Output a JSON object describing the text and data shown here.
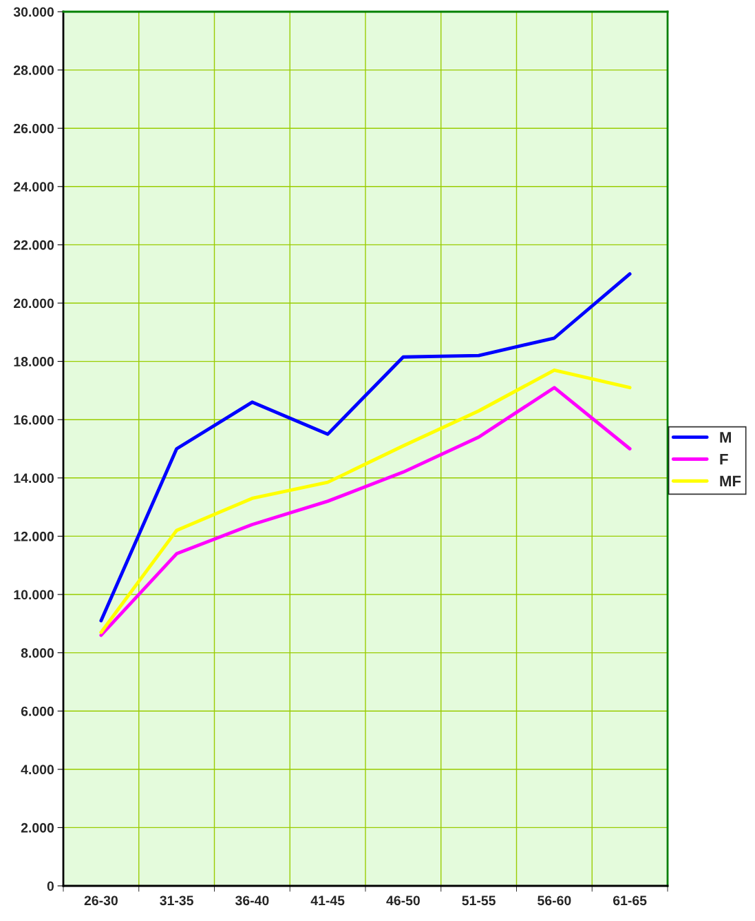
{
  "chart_data": {
    "type": "line",
    "categories": [
      "26-30",
      "31-35",
      "36-40",
      "41-45",
      "46-50",
      "51-55",
      "56-60",
      "61-65"
    ],
    "series": [
      {
        "name": "M",
        "color": "#0000ff",
        "values": [
          9100,
          15000,
          16600,
          15500,
          18150,
          18200,
          18800,
          21000
        ]
      },
      {
        "name": "F",
        "color": "#ff00ff",
        "values": [
          8600,
          11400,
          12400,
          13200,
          14200,
          15400,
          17100,
          15000
        ]
      },
      {
        "name": "MF",
        "color": "#ffff00",
        "values": [
          8700,
          12200,
          13300,
          13850,
          15100,
          16300,
          17700,
          17100
        ]
      }
    ],
    "ylim": [
      0,
      30000
    ],
    "yticks": [
      {
        "value": 0,
        "label": "0"
      },
      {
        "value": 2000,
        "label": "2.000"
      },
      {
        "value": 4000,
        "label": "4.000"
      },
      {
        "value": 6000,
        "label": "6.000"
      },
      {
        "value": 8000,
        "label": "8.000"
      },
      {
        "value": 10000,
        "label": "10.000"
      },
      {
        "value": 12000,
        "label": "12.000"
      },
      {
        "value": 14000,
        "label": "14.000"
      },
      {
        "value": 16000,
        "label": "16.000"
      },
      {
        "value": 18000,
        "label": "18.000"
      },
      {
        "value": 20000,
        "label": "20.000"
      },
      {
        "value": 22000,
        "label": "22.000"
      },
      {
        "value": 24000,
        "label": "24.000"
      },
      {
        "value": 26000,
        "label": "26.000"
      },
      {
        "value": 28000,
        "label": "28.000"
      },
      {
        "value": 30000,
        "label": "30.000"
      }
    ],
    "grid": true,
    "legend": "right",
    "marker": "none",
    "line_style": "solid"
  }
}
